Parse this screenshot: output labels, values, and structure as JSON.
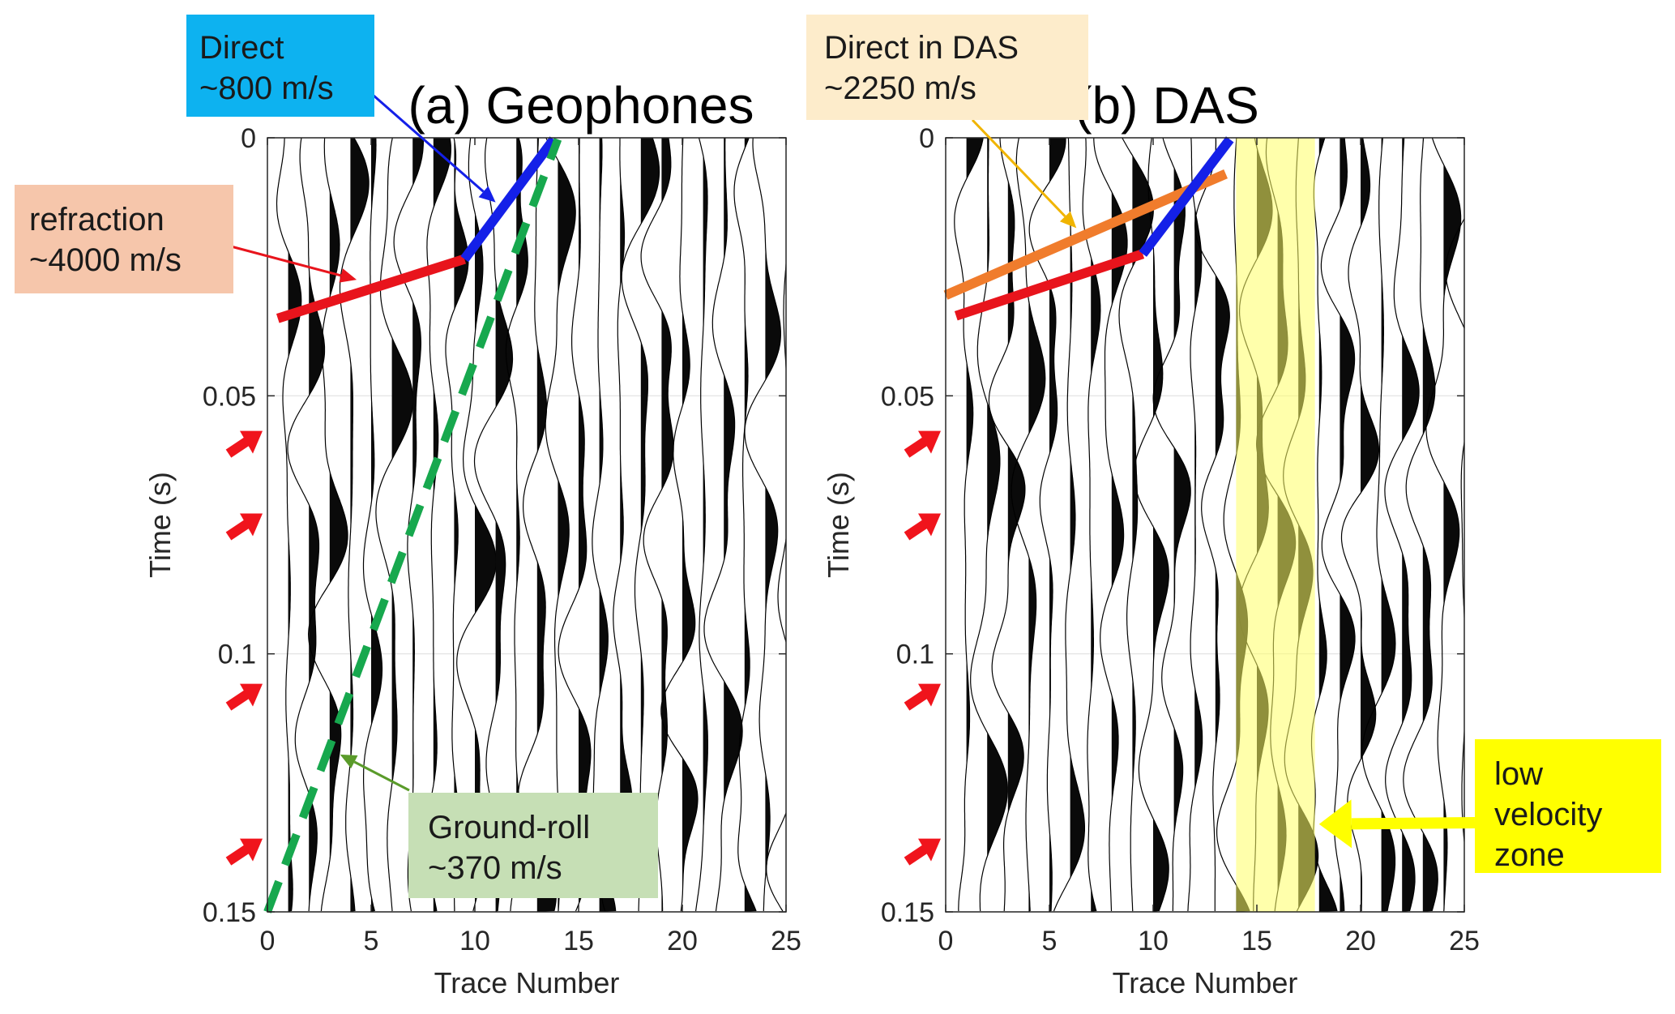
{
  "chart_data": [
    {
      "type": "line",
      "title": "(a) Geophones",
      "xlabel": "Trace Number",
      "ylabel": "Time (s)",
      "xlim": [
        0,
        25
      ],
      "ylim": [
        0,
        0.15
      ],
      "y_reversed": true,
      "x_ticks": [
        0,
        5,
        10,
        15,
        20,
        25
      ],
      "y_ticks": [
        0,
        0.05,
        0.1,
        0.15
      ],
      "x_tick_labels": [
        "0",
        "5",
        "10",
        "15",
        "20",
        "25"
      ],
      "y_tick_labels": [
        "0",
        "0.05",
        "0.1",
        "0.15"
      ],
      "grid": true,
      "traces": 25,
      "series": [
        {
          "color": "#e8141c",
          "style": "solid",
          "x": [
            0.5,
            9.5
          ],
          "y": [
            0.035,
            0.0235
          ]
        },
        {
          "color": "#1420e8",
          "style": "solid",
          "x": [
            9.5,
            13.8
          ],
          "y": [
            0.0235,
            0.0003
          ]
        },
        {
          "color": "#17a84e",
          "style": "dashed",
          "x": [
            0.0,
            14.0
          ],
          "y": [
            0.15,
            0.0003
          ]
        }
      ],
      "annotations": [
        {
          "lines": [
            "Direct",
            "~800 m/s"
          ],
          "color": "#0db2f0",
          "arrow_color": "#1420e8",
          "arrow_to": [
            11.0,
            0.0125
          ]
        },
        {
          "lines": [
            "refraction",
            "~4000 m/s"
          ],
          "color": "#f6c6ab",
          "arrow_color": "#e8141c",
          "arrow_to": [
            4.3,
            0.0275
          ]
        },
        {
          "lines": [
            "Ground-roll",
            "~370 m/s"
          ],
          "color": "#c6dfb5",
          "arrow_color": "#5a9b2a",
          "arrow_to": [
            3.5,
            0.1195
          ]
        }
      ],
      "marker_times": [
        0.059,
        0.075,
        0.108,
        0.138
      ]
    },
    {
      "type": "line",
      "title": "(b) DAS",
      "xlabel": "Trace Number",
      "ylabel": "Time (s)",
      "xlim": [
        0,
        25
      ],
      "ylim": [
        0,
        0.15
      ],
      "y_reversed": true,
      "x_ticks": [
        0,
        5,
        10,
        15,
        20,
        25
      ],
      "y_ticks": [
        0,
        0.05,
        0.1,
        0.15
      ],
      "x_tick_labels": [
        "0",
        "5",
        "10",
        "15",
        "20",
        "25"
      ],
      "y_tick_labels": [
        "0",
        "0.05",
        "0.1",
        "0.15"
      ],
      "grid": true,
      "traces": 25,
      "highlight_x": [
        14.0,
        17.8
      ],
      "highlight_color": "#ffff66",
      "series": [
        {
          "color": "#f07c2c",
          "style": "solid",
          "x": [
            0.0,
            13.5
          ],
          "y": [
            0.0305,
            0.007
          ]
        },
        {
          "color": "#e8141c",
          "style": "solid",
          "x": [
            0.5,
            9.5
          ],
          "y": [
            0.0345,
            0.0225
          ]
        },
        {
          "color": "#1420e8",
          "style": "solid",
          "x": [
            9.5,
            13.7
          ],
          "y": [
            0.0225,
            0.0003
          ]
        }
      ],
      "annotations": [
        {
          "lines": [
            "Direct in DAS",
            "~2250 m/s"
          ],
          "color": "#fdeccb",
          "arrow_color": "#f0b400",
          "arrow_to": [
            6.3,
            0.0175
          ]
        },
        {
          "lines": [
            "low",
            "velocity",
            "zone"
          ],
          "color": "#ffff00",
          "arrow_color": "#ffff00",
          "arrow_to": [
            18.0,
            0.133
          ]
        }
      ],
      "marker_times": [
        0.059,
        0.075,
        0.108,
        0.138
      ]
    }
  ]
}
